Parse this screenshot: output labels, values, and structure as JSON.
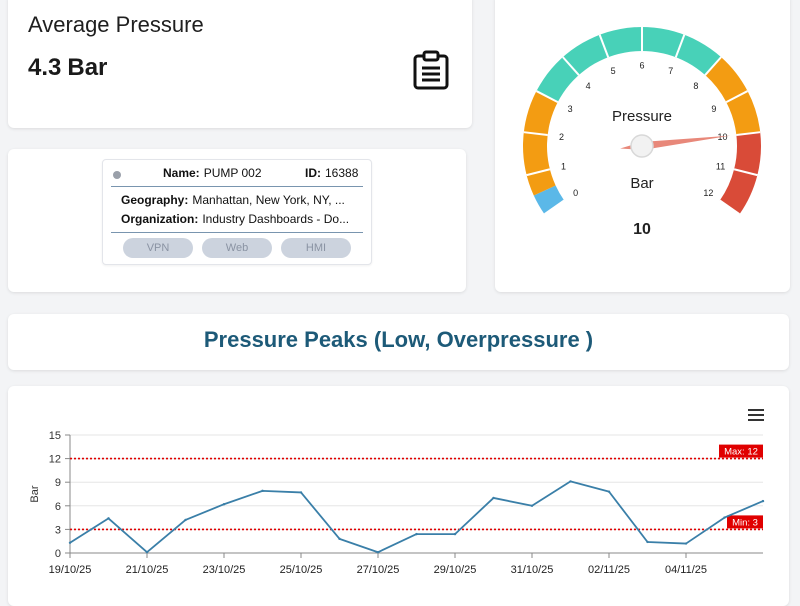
{
  "average": {
    "title": "Average Pressure",
    "value": "4.3",
    "unit": "Bar",
    "icon": "clipboard-icon"
  },
  "device": {
    "name_label": "Name:",
    "name": "PUMP 002",
    "id_label": "ID:",
    "id": "16388",
    "geography_label": "Geography:",
    "geography": "Manhattan, New York, NY, ...",
    "organization_label": "Organization:",
    "organization": "Industry Dashboards - Do...",
    "buttons": [
      "VPN",
      "Web",
      "HMI"
    ],
    "status_color": "#9aa0aa"
  },
  "gauge": {
    "title": "Pressure",
    "unit": "Bar",
    "value": 10,
    "display": "10",
    "min": 0,
    "max": 12,
    "ticks": [
      "0",
      "1",
      "2",
      "3",
      "4",
      "5",
      "6",
      "7",
      "8",
      "9",
      "10",
      "11",
      "12"
    ],
    "bands": [
      {
        "from": 0,
        "to": 0.5,
        "color": "#5bb8e8"
      },
      {
        "from": 0.5,
        "to": 3,
        "color": "#f39c12"
      },
      {
        "from": 3,
        "to": 8,
        "color": "#48d1b8"
      },
      {
        "from": 8,
        "to": 10,
        "color": "#f39c12"
      },
      {
        "from": 10,
        "to": 12,
        "color": "#d94b38"
      }
    ]
  },
  "chart_title": "Pressure Peaks (Low, Overpressure )",
  "chart_data": {
    "type": "line",
    "ylabel": "Bar",
    "ylim": [
      0,
      15
    ],
    "yticks": [
      "0",
      "3",
      "6",
      "9",
      "12",
      "15"
    ],
    "xlabels": [
      "19/10/25",
      "21/10/25",
      "23/10/25",
      "25/10/25",
      "27/10/25",
      "29/10/25",
      "31/10/25",
      "02/11/25",
      "04/11/25"
    ],
    "series": [
      {
        "values": [
          1.3,
          4.4,
          0.1,
          4.2,
          6.2,
          7.9,
          7.7,
          1.8,
          0.1,
          2.4,
          2.4,
          7.0,
          6.0,
          9.1,
          7.8,
          1.4,
          1.2,
          4.5,
          6.6
        ],
        "color": "#3a7fa8"
      }
    ],
    "max_line": {
      "value": 12,
      "label": "Max: 12",
      "color": "#e00000"
    },
    "min_line": {
      "value": 3,
      "label": "Min: 3",
      "color": "#e00000"
    },
    "grid": true
  }
}
